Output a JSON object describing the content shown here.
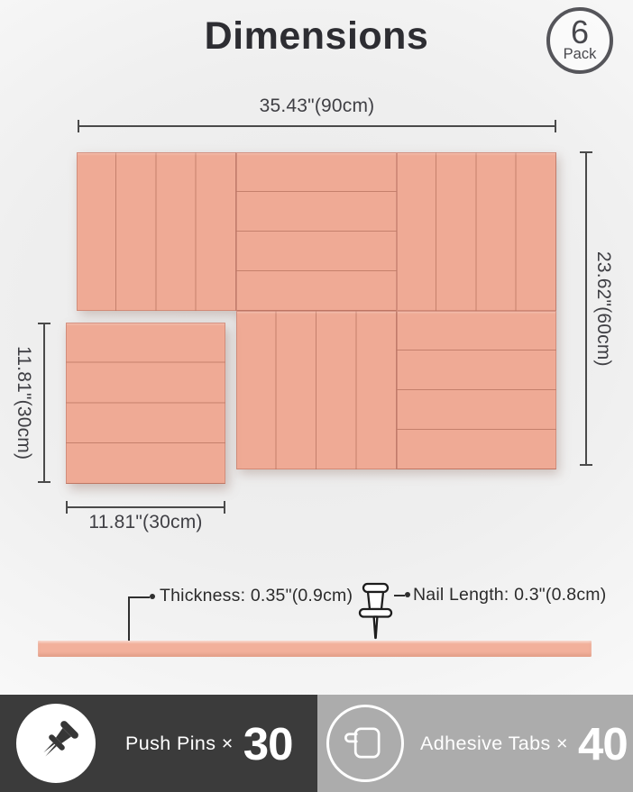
{
  "header": {
    "title": "Dimensions",
    "pack_count": "6",
    "pack_unit": "Pack"
  },
  "dimensions": {
    "board_width": "35.43\"(90cm)",
    "board_height": "23.62\"(60cm)",
    "tile_height": "11.81\"(30cm)",
    "tile_width": "11.81\"(30cm)"
  },
  "board": {
    "rows": 2,
    "cols": 3,
    "tiles": [
      {
        "row": 0,
        "col": 0,
        "pattern": "vertical"
      },
      {
        "row": 0,
        "col": 1,
        "pattern": "horizontal"
      },
      {
        "row": 0,
        "col": 2,
        "pattern": "vertical"
      },
      {
        "row": 1,
        "col": 1,
        "pattern": "vertical"
      },
      {
        "row": 1,
        "col": 2,
        "pattern": "horizontal"
      }
    ],
    "detached_tile": {
      "pattern": "horizontal"
    },
    "stripes_per_tile": 4
  },
  "side_view": {
    "thickness_label": "Thickness: 0.35\"(0.9cm)",
    "nail_label": "Nail Length: 0.3\"(0.8cm)"
  },
  "footer": {
    "push_pins_label": "Push Pins ×",
    "push_pins_count": "30",
    "adhesive_tabs_label": "Adhesive Tabs ×",
    "adhesive_tabs_count": "40"
  },
  "colors": {
    "panel": "#efaa95",
    "groove": "#c5806c",
    "panel_side": "#f2b09b",
    "footer_dark": "#3b3b3b",
    "footer_light": "#acacac"
  }
}
